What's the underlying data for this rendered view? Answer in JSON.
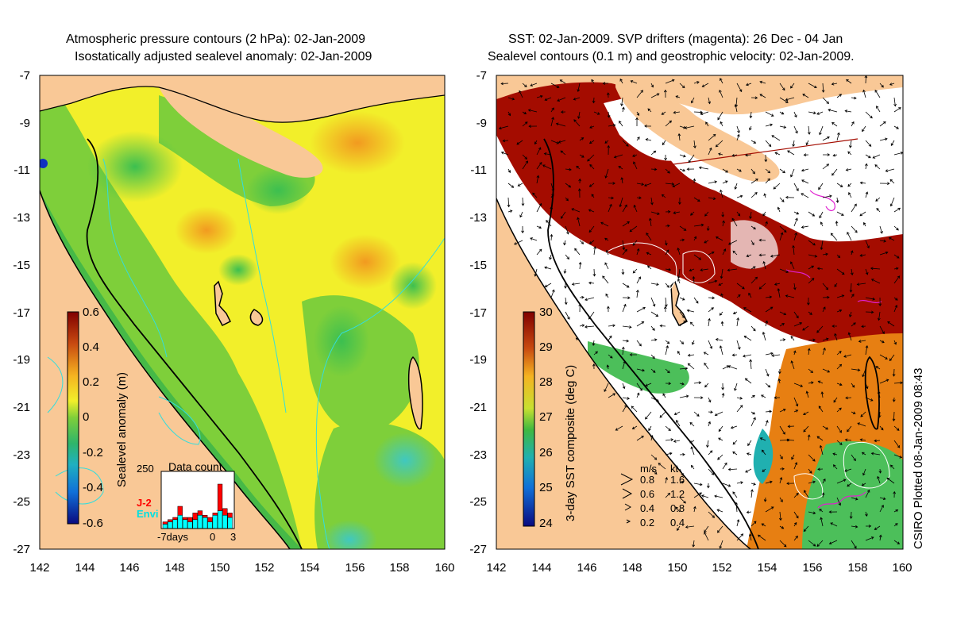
{
  "left_panel": {
    "title_line1": "Atmospheric pressure contours (2 hPa): 02-Jan-2009",
    "title_line2": "Isostatically adjusted sealevel anomaly: 02-Jan-2009",
    "y_ticks": [
      "-7",
      "-9",
      "-11",
      "-13",
      "-15",
      "-17",
      "-19",
      "-21",
      "-23",
      "-25",
      "-27"
    ],
    "x_ticks": [
      "142",
      "144",
      "146",
      "148",
      "150",
      "152",
      "154",
      "156",
      "158",
      "160"
    ],
    "colorbar": {
      "label": "Sealevel anomaly (m)",
      "ticks": [
        "0.6",
        "0.4",
        "0.2",
        "0",
        "-0.2",
        "-0.4",
        "-0.6"
      ],
      "range": [
        -0.6,
        0.6
      ]
    },
    "inset": {
      "title": "Data count",
      "y_max_label": "250",
      "x_label_left": "-7days",
      "x_label_zero": "0",
      "x_label_right": "3",
      "series": [
        {
          "name": "J-2",
          "color": "#ff0000"
        },
        {
          "name": "Envi",
          "color": "#00ffff"
        }
      ],
      "envi_counts": [
        20,
        30,
        40,
        60,
        40,
        30,
        40,
        60,
        50,
        30,
        60,
        80,
        60,
        50
      ],
      "j2_counts": [
        10,
        10,
        10,
        40,
        10,
        20,
        30,
        20,
        10,
        20,
        10,
        120,
        30,
        20
      ]
    }
  },
  "right_panel": {
    "title_line1": "SST: 02-Jan-2009. SVP drifters (magenta): 26 Dec - 04 Jan",
    "title_line2": "Sealevel contours (0.1 m) and geostrophic velocity: 02-Jan-2009.",
    "y_ticks": [
      "-7",
      "-9",
      "-11",
      "-13",
      "-15",
      "-17",
      "-19",
      "-21",
      "-23",
      "-25",
      "-27"
    ],
    "x_ticks": [
      "142",
      "144",
      "146",
      "148",
      "150",
      "152",
      "154",
      "156",
      "158",
      "160"
    ],
    "colorbar": {
      "label": "3-day SST composite (deg C)",
      "ticks": [
        "30",
        "29",
        "28",
        "27",
        "26",
        "25",
        "24"
      ],
      "range": [
        24,
        30
      ]
    },
    "velocity_legend": {
      "header_ms": "m/s",
      "header_kt": "kt",
      "rows": [
        {
          "ms": "0.8",
          "kt": "1.6"
        },
        {
          "ms": "0.6",
          "kt": "1.2"
        },
        {
          "ms": "0.4",
          "kt": "0.8"
        },
        {
          "ms": "0.2",
          "kt": "0.4"
        }
      ]
    }
  },
  "footer_note": "CSIRO Plotted 08-Jan-2009 08:43",
  "colors": {
    "land": "#f9c896",
    "ocean_green": "#7ecf3a",
    "ocean_yellow": "#f2ef2a",
    "ocean_orange": "#f5b321",
    "ocean_shelf": "#3cb54a",
    "sst_red": "#a40c00",
    "sst_orange": "#e77f12",
    "contour_cyan": "#33dddd",
    "drifter_magenta": "#e020d0"
  }
}
